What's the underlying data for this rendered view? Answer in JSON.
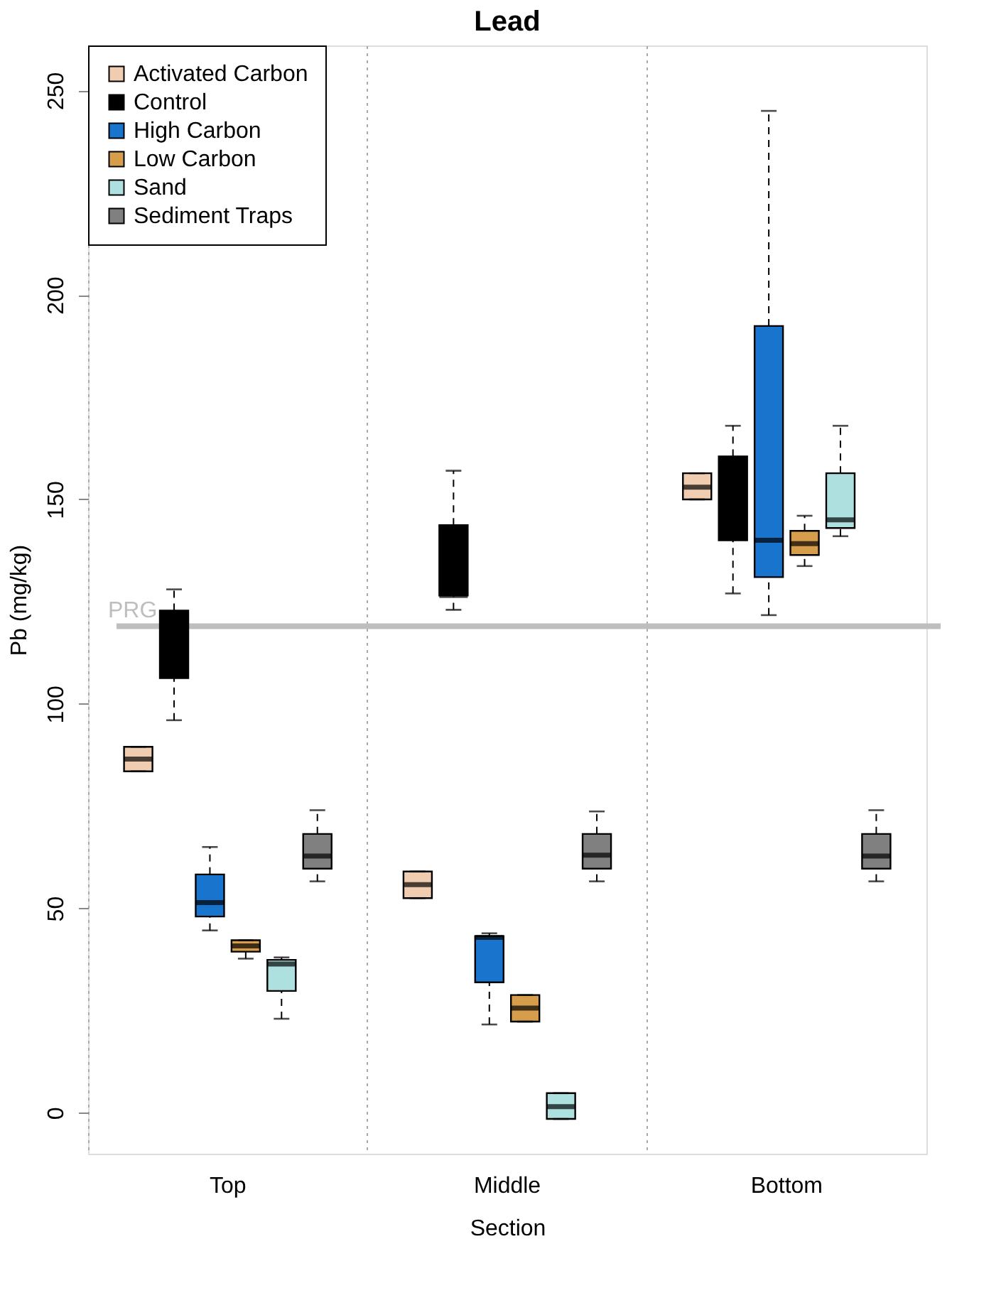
{
  "chart_data": {
    "type": "box",
    "title": "Lead",
    "xlabel": "Section",
    "ylabel": "Pb (mg/kg)",
    "categories": [
      "Top",
      "Middle",
      "Bottom"
    ],
    "ylim": [
      -10,
      261
    ],
    "yticks": [
      0,
      50,
      100,
      150,
      200,
      250
    ],
    "grid": "x",
    "legend": "top left",
    "ref_lines": [
      {
        "axis": "y",
        "value": 119,
        "label": "PRG",
        "color": "#bebebe"
      }
    ],
    "series": [
      {
        "name": "Activated Carbon",
        "color": "#f0cdb0",
        "boxes": [
          {
            "low": 83.5,
            "q1": 83.5,
            "median": 86.5,
            "q3": 89.5,
            "high": 89.5
          },
          {
            "low": 52.5,
            "q1": 52.5,
            "median": 55.8,
            "q3": 59,
            "high": 59
          },
          {
            "low": 150,
            "q1": 150,
            "median": 153,
            "q3": 156.4,
            "high": 156.4
          }
        ]
      },
      {
        "name": "Control",
        "color": "#000000",
        "boxes": [
          {
            "low": 96,
            "q1": 106.3,
            "median": 120,
            "q3": 122.8,
            "high": 128
          },
          {
            "low": 123,
            "q1": 126.5,
            "median": 126.5,
            "q3": 143.7,
            "high": 157
          },
          {
            "low": 127,
            "q1": 140,
            "median": 141,
            "q3": 160.5,
            "high": 168
          }
        ]
      },
      {
        "name": "High Carbon",
        "color": "#1874cd",
        "boxes": [
          {
            "low": 44.6,
            "q1": 48,
            "median": 51.4,
            "q3": 58.3,
            "high": 65
          },
          {
            "low": 21.6,
            "q1": 31.9,
            "median": 42.9,
            "q3": 43.2,
            "high": 43.9
          },
          {
            "low": 121.7,
            "q1": 131,
            "median": 140,
            "q3": 192.4,
            "high": 245
          }
        ]
      },
      {
        "name": "Low Carbon",
        "color": "#d69e4c",
        "boxes": [
          {
            "low": 37.7,
            "q1": 39.4,
            "median": 40.8,
            "q3": 42.2,
            "high": 42.2
          },
          {
            "low": 22.3,
            "q1": 22.3,
            "median": 25.6,
            "q3": 28.8,
            "high": 28.8
          },
          {
            "low": 133.7,
            "q1": 136.4,
            "median": 139.2,
            "q3": 142.3,
            "high": 146
          }
        ]
      },
      {
        "name": "Sand",
        "color": "#aee0e0",
        "boxes": [
          {
            "low": 23,
            "q1": 29.8,
            "median": 36.4,
            "q3": 37.4,
            "high": 38
          },
          {
            "low": -1.5,
            "q1": -1.5,
            "median": 1.5,
            "q3": 4.8,
            "high": 4.8
          },
          {
            "low": 141,
            "q1": 143,
            "median": 145,
            "q3": 156.4,
            "high": 168
          }
        ]
      },
      {
        "name": "Sediment Traps",
        "color": "#808080",
        "boxes": [
          {
            "low": 56.6,
            "q1": 59.7,
            "median": 62.8,
            "q3": 68.2,
            "high": 74
          },
          {
            "low": 56.6,
            "q1": 59.7,
            "median": 63,
            "q3": 68.2,
            "high": 73.7
          },
          {
            "low": 56.6,
            "q1": 59.7,
            "median": 62.8,
            "q3": 68.2,
            "high": 74
          }
        ]
      }
    ]
  }
}
